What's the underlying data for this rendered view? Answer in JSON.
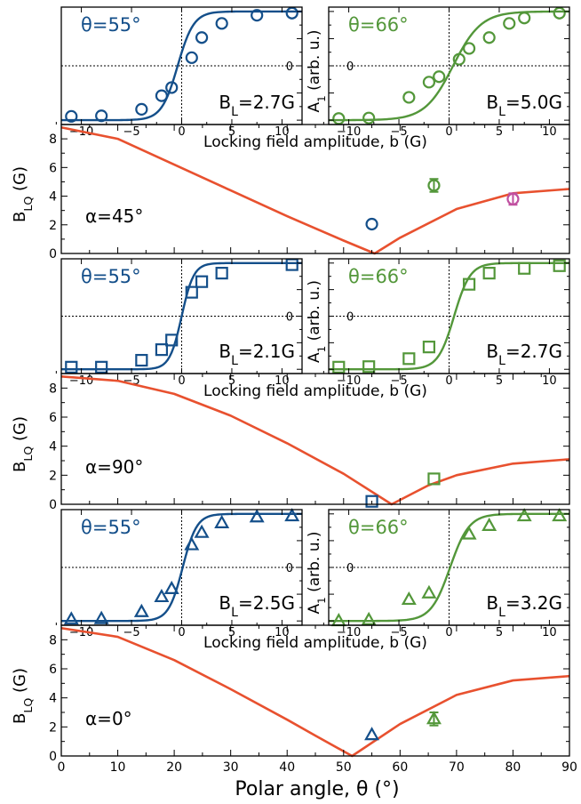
{
  "figure": {
    "xlabel_main": "Polar angle, θ (°)",
    "ylabel_main": "B_LQ (G)",
    "xlabel_inset": "Locking field amplitude, b (G)",
    "ylabel_inset": "A_1 (arb. u.)",
    "inset_zero_label": "0"
  },
  "colors": {
    "blue": "#144f8a",
    "green": "#53973a",
    "orange": "#e8512f",
    "magenta": "#c050a0"
  },
  "chart_data": [
    {
      "type": "line",
      "panel": "alpha=45",
      "annotation": "α=45°",
      "xlabel": "Polar angle, θ (°)",
      "ylabel": "B_LQ (G)",
      "xlim": [
        0,
        90
      ],
      "ylim": [
        0,
        9
      ],
      "yticks": [
        0,
        2,
        4,
        6,
        8
      ],
      "theory_curve": {
        "x": [
          0,
          10,
          20,
          30,
          40,
          50,
          55.5,
          60,
          70,
          80,
          90
        ],
        "y": [
          8.8,
          8.0,
          6.2,
          4.4,
          2.6,
          0.9,
          0.0,
          1.1,
          3.1,
          4.2,
          4.5
        ]
      },
      "points": [
        {
          "x": 55,
          "y": 2.05,
          "err": 0.1,
          "marker": "circle",
          "color": "blue"
        },
        {
          "x": 66,
          "y": 4.75,
          "err": 0.45,
          "marker": "circle",
          "color": "green"
        },
        {
          "x": 80,
          "y": 3.8,
          "err": 0.4,
          "marker": "circle",
          "color": "magenta"
        }
      ],
      "insets": [
        {
          "label": "θ=55°",
          "bl": "B_L=2.7G",
          "color": "blue",
          "marker": "circle",
          "center": -0.4,
          "width": 1.6,
          "points": [
            [
              -11,
              -0.93
            ],
            [
              -8,
              -0.92
            ],
            [
              -4,
              -0.8
            ],
            [
              -2,
              -0.55
            ],
            [
              -1,
              -0.4
            ],
            [
              1,
              0.15
            ],
            [
              2,
              0.52
            ],
            [
              4,
              0.78
            ],
            [
              7.5,
              0.93
            ],
            [
              11,
              0.97
            ]
          ]
        },
        {
          "label": "θ=66°",
          "bl": "B_L=5.0G",
          "color": "green",
          "marker": "circle",
          "center": 0.4,
          "width": 2.8,
          "points": [
            [
              -11,
              -0.97
            ],
            [
              -8,
              -0.96
            ],
            [
              -4,
              -0.58
            ],
            [
              -2,
              -0.3
            ],
            [
              -1,
              -0.2
            ],
            [
              1,
              0.12
            ],
            [
              2,
              0.32
            ],
            [
              4,
              0.52
            ],
            [
              6,
              0.78
            ],
            [
              7.5,
              0.88
            ],
            [
              11,
              0.97
            ]
          ]
        }
      ]
    },
    {
      "type": "line",
      "panel": "alpha=90",
      "annotation": "α=90°",
      "xlabel": "Polar angle, θ (°)",
      "ylabel": "B_LQ (G)",
      "xlim": [
        0,
        90
      ],
      "ylim": [
        0,
        9
      ],
      "yticks": [
        0,
        2,
        4,
        6,
        8
      ],
      "theory_curve": {
        "x": [
          0,
          10,
          20,
          30,
          40,
          50,
          58.5,
          65,
          70,
          80,
          90
        ],
        "y": [
          8.8,
          8.5,
          7.6,
          6.1,
          4.2,
          2.1,
          0.0,
          1.3,
          2.0,
          2.8,
          3.1
        ]
      },
      "points": [
        {
          "x": 55,
          "y": 0.2,
          "err": 0.1,
          "marker": "square",
          "color": "blue"
        },
        {
          "x": 66,
          "y": 1.75,
          "err": 0.15,
          "marker": "square",
          "color": "green"
        }
      ],
      "insets": [
        {
          "label": "θ=55°",
          "bl": "B_L=2.1G",
          "color": "blue",
          "marker": "square",
          "center": 0,
          "width": 1.2,
          "points": [
            [
              -11,
              -0.96
            ],
            [
              -8,
              -0.96
            ],
            [
              -4,
              -0.83
            ],
            [
              -2,
              -0.63
            ],
            [
              -1,
              -0.45
            ],
            [
              1,
              0.45
            ],
            [
              2,
              0.65
            ],
            [
              4,
              0.81
            ],
            [
              11,
              0.97
            ]
          ]
        },
        {
          "label": "θ=66°",
          "bl": "B_L=2.7G",
          "color": "green",
          "marker": "square",
          "center": 0.5,
          "width": 1.6,
          "points": [
            [
              -11,
              -0.96
            ],
            [
              -8,
              -0.95
            ],
            [
              -4,
              -0.8
            ],
            [
              -2,
              -0.58
            ],
            [
              2,
              0.6
            ],
            [
              4,
              0.81
            ],
            [
              7.5,
              0.9
            ],
            [
              11,
              0.95
            ]
          ]
        }
      ]
    },
    {
      "type": "line",
      "panel": "alpha=0",
      "annotation": "α=0°",
      "xlabel": "Polar angle, θ (°)",
      "ylabel": "B_LQ (G)",
      "xlim": [
        0,
        90
      ],
      "xticks": [
        0,
        10,
        20,
        30,
        40,
        50,
        60,
        70,
        80,
        90
      ],
      "ylim": [
        0,
        9
      ],
      "yticks": [
        0,
        2,
        4,
        6,
        8
      ],
      "theory_curve": {
        "x": [
          0,
          10,
          20,
          30,
          40,
          45,
          51.5,
          60,
          70,
          80,
          90
        ],
        "y": [
          8.8,
          8.2,
          6.6,
          4.6,
          2.5,
          1.4,
          0.0,
          2.2,
          4.2,
          5.2,
          5.5
        ]
      },
      "points": [
        {
          "x": 55,
          "y": 1.45,
          "err": 0.1,
          "marker": "triangle",
          "color": "blue"
        },
        {
          "x": 66,
          "y": 2.55,
          "err": 0.45,
          "marker": "triangle",
          "color": "green"
        }
      ],
      "insets": [
        {
          "label": "θ=55°",
          "bl": "B_L=2.5G",
          "color": "blue",
          "marker": "triangle",
          "center": 0.1,
          "width": 1.4,
          "points": [
            [
              -11,
              -0.97
            ],
            [
              -8,
              -0.96
            ],
            [
              -4,
              -0.83
            ],
            [
              -2,
              -0.55
            ],
            [
              -1,
              -0.4
            ],
            [
              1,
              0.42
            ],
            [
              2,
              0.65
            ],
            [
              4,
              0.83
            ],
            [
              7.5,
              0.94
            ],
            [
              11,
              0.96
            ]
          ]
        },
        {
          "label": "θ=66°",
          "bl": "B_L=3.2G",
          "color": "green",
          "marker": "triangle",
          "center": 0.1,
          "width": 1.9,
          "points": [
            [
              -11,
              -1.0
            ],
            [
              -8,
              -0.98
            ],
            [
              -4,
              -0.6
            ],
            [
              -2,
              -0.48
            ],
            [
              2,
              0.62
            ],
            [
              4,
              0.78
            ],
            [
              7.5,
              0.96
            ],
            [
              11,
              0.96
            ]
          ]
        }
      ]
    }
  ]
}
